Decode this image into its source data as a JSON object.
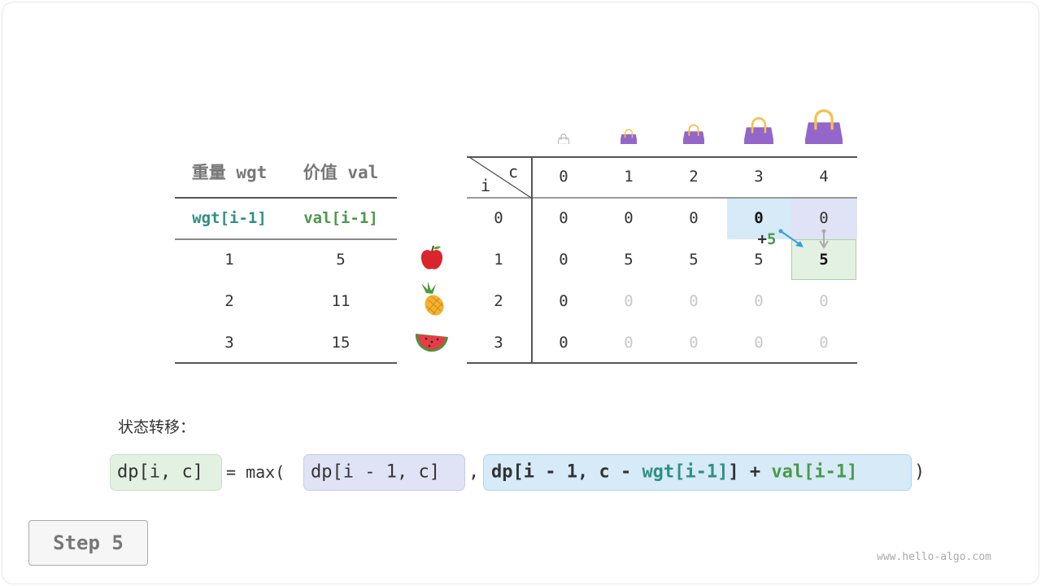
{
  "left_table": {
    "headers": [
      "重量 wgt",
      "价值 val"
    ],
    "subheaders": [
      "wgt[i-1]",
      "val[i-1]"
    ],
    "rows": [
      [
        "1",
        "5"
      ],
      [
        "2",
        "11"
      ],
      [
        "3",
        "15"
      ]
    ]
  },
  "fruit_icons": [
    "apple-icon",
    "pineapple-icon",
    "watermelon-icon"
  ],
  "dp_table": {
    "corner_col": "c",
    "corner_row": "i",
    "col_headers": [
      "0",
      "1",
      "2",
      "3",
      "4"
    ],
    "row_headers": [
      "0",
      "1",
      "2",
      "3"
    ],
    "rows": [
      [
        "0",
        "0",
        "0",
        "0",
        "0"
      ],
      [
        "0",
        "5",
        "5",
        "5",
        "5"
      ],
      [
        "0",
        "0",
        "0",
        "0",
        "0"
      ],
      [
        "0",
        "0",
        "0",
        "0",
        "0"
      ]
    ],
    "filled_rows_cols": [
      [
        5,
        5,
        5,
        5,
        5
      ],
      [
        5,
        5,
        5,
        5,
        5
      ],
      [
        1,
        0,
        0,
        0,
        0
      ],
      [
        1,
        0,
        0,
        0,
        0
      ]
    ],
    "annotation": {
      "plus": "+",
      "value": "5"
    }
  },
  "formula": {
    "label": "状态转移：",
    "lhs": "dp[i, c]",
    "eq": "= max(",
    "arg1": "dp[i - 1, c]",
    "comma": ",",
    "arg2_a": "dp[i - 1, c - ",
    "arg2_wgt": "wgt[i-1]",
    "arg2_b": "] + ",
    "arg2_val": "val[i-1]",
    "close": ")"
  },
  "colors": {
    "blue_cell": "#d6eaf8",
    "purple_cell": "#e0e3f6",
    "green_cell": "#e3f1e2",
    "bag": "#9466c9",
    "handle": "#f5c04a",
    "teal": "#2f8f82",
    "green": "#4a9a48"
  },
  "step_button": "Step 5",
  "watermark": "www.hello-algo.com"
}
